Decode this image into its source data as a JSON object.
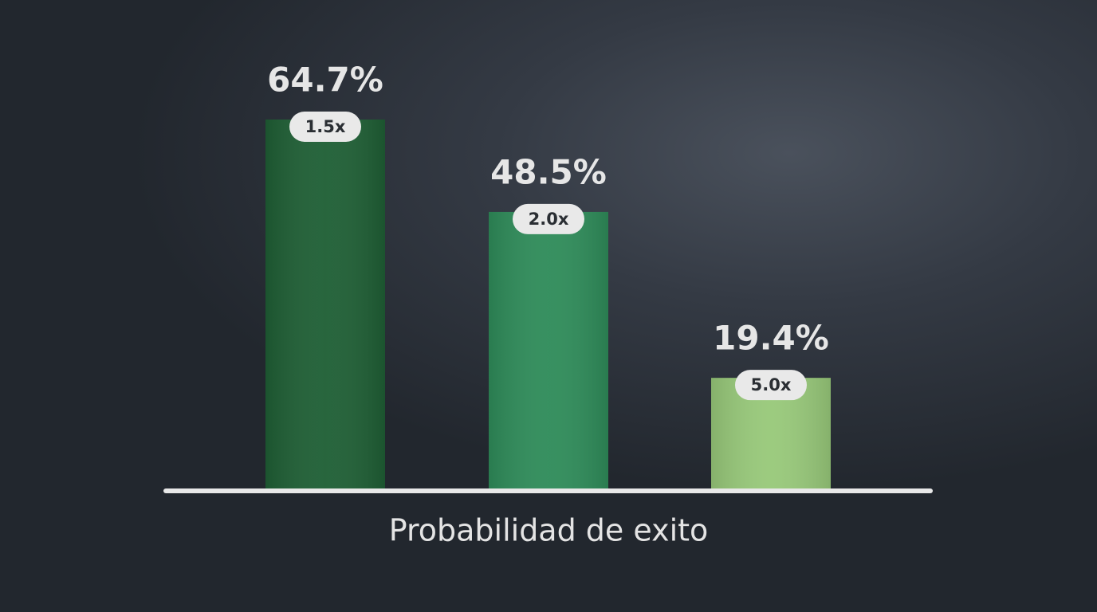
{
  "chart_data": {
    "type": "bar",
    "categories": [
      null,
      null,
      null
    ],
    "values": [
      64.7,
      48.5,
      19.4
    ],
    "value_labels": [
      "64.7%",
      "48.5%",
      "19.4%"
    ],
    "multipliers": [
      "1.5x",
      "2.0x",
      "5.0x"
    ],
    "colors": [
      "#1f5f35",
      "#2f8c5a",
      "#98c97a"
    ],
    "x_label": "Probabilidad de exito"
  }
}
